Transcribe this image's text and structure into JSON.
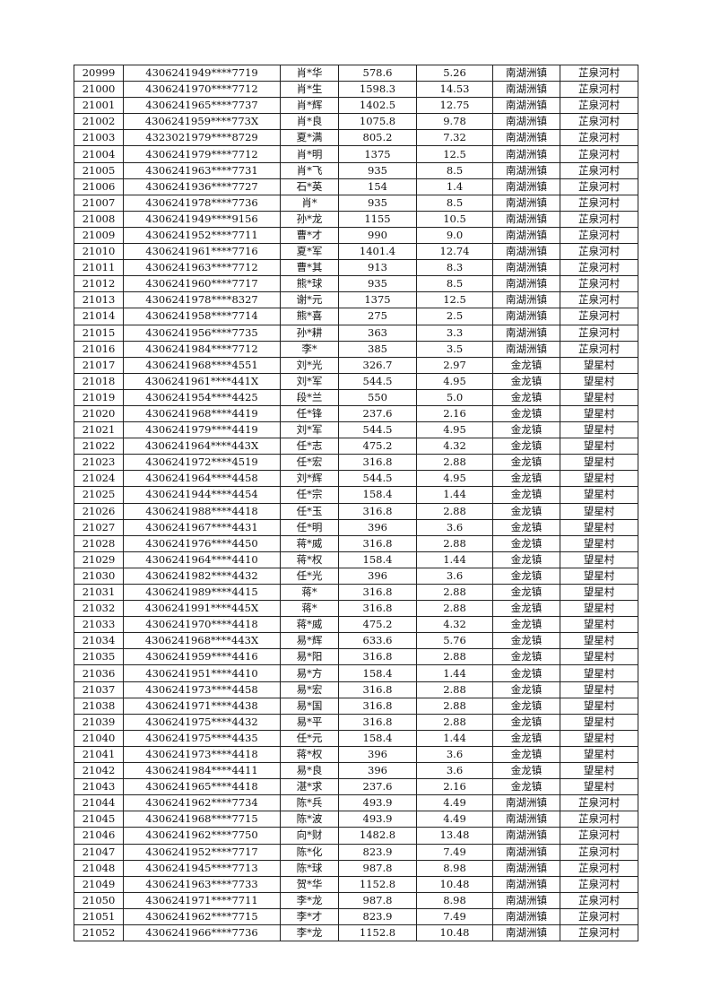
{
  "rows": [
    [
      "20999",
      "4306241949****7719",
      "肖*华",
      "578.6",
      "5.26",
      "南湖洲镇",
      "芷泉河村"
    ],
    [
      "21000",
      "4306241970****7712",
      "肖*生",
      "1598.3",
      "14.53",
      "南湖洲镇",
      "芷泉河村"
    ],
    [
      "21001",
      "4306241965****7737",
      "肖*辉",
      "1402.5",
      "12.75",
      "南湖洲镇",
      "芷泉河村"
    ],
    [
      "21002",
      "4306241959****773X",
      "肖*良",
      "1075.8",
      "9.78",
      "南湖洲镇",
      "芷泉河村"
    ],
    [
      "21003",
      "4323021979****8729",
      "夏*满",
      "805.2",
      "7.32",
      "南湖洲镇",
      "芷泉河村"
    ],
    [
      "21004",
      "4306241979****7712",
      "肖*明",
      "1375",
      "12.5",
      "南湖洲镇",
      "芷泉河村"
    ],
    [
      "21005",
      "4306241963****7731",
      "肖*飞",
      "935",
      "8.5",
      "南湖洲镇",
      "芷泉河村"
    ],
    [
      "21006",
      "4306241936****7727",
      "石*英",
      "154",
      "1.4",
      "南湖洲镇",
      "芷泉河村"
    ],
    [
      "21007",
      "4306241978****7736",
      "肖*",
      "935",
      "8.5",
      "南湖洲镇",
      "芷泉河村"
    ],
    [
      "21008",
      "4306241949****9156",
      "孙*龙",
      "1155",
      "10.5",
      "南湖洲镇",
      "芷泉河村"
    ],
    [
      "21009",
      "4306241952****7711",
      "曹*才",
      "990",
      "9.0",
      "南湖洲镇",
      "芷泉河村"
    ],
    [
      "21010",
      "4306241961****7716",
      "夏*军",
      "1401.4",
      "12.74",
      "南湖洲镇",
      "芷泉河村"
    ],
    [
      "21011",
      "4306241963****7712",
      "曹*其",
      "913",
      "8.3",
      "南湖洲镇",
      "芷泉河村"
    ],
    [
      "21012",
      "4306241960****7717",
      "熊*球",
      "935",
      "8.5",
      "南湖洲镇",
      "芷泉河村"
    ],
    [
      "21013",
      "4306241978****8327",
      "谢*元",
      "1375",
      "12.5",
      "南湖洲镇",
      "芷泉河村"
    ],
    [
      "21014",
      "4306241958****7714",
      "熊*喜",
      "275",
      "2.5",
      "南湖洲镇",
      "芷泉河村"
    ],
    [
      "21015",
      "4306241956****7735",
      "孙*耕",
      "363",
      "3.3",
      "南湖洲镇",
      "芷泉河村"
    ],
    [
      "21016",
      "4306241984****7712",
      "李*",
      "385",
      "3.5",
      "南湖洲镇",
      "芷泉河村"
    ],
    [
      "21017",
      "4306241968****4551",
      "刘*光",
      "326.7",
      "2.97",
      "金龙镇",
      "望星村"
    ],
    [
      "21018",
      "4306241961****441X",
      "刘*军",
      "544.5",
      "4.95",
      "金龙镇",
      "望星村"
    ],
    [
      "21019",
      "4306241954****4425",
      "段*兰",
      "550",
      "5.0",
      "金龙镇",
      "望星村"
    ],
    [
      "21020",
      "4306241968****4419",
      "任*锋",
      "237.6",
      "2.16",
      "金龙镇",
      "望星村"
    ],
    [
      "21021",
      "4306241979****4419",
      "刘*军",
      "544.5",
      "4.95",
      "金龙镇",
      "望星村"
    ],
    [
      "21022",
      "4306241964****443X",
      "任*志",
      "475.2",
      "4.32",
      "金龙镇",
      "望星村"
    ],
    [
      "21023",
      "4306241972****4519",
      "任*宏",
      "316.8",
      "2.88",
      "金龙镇",
      "望星村"
    ],
    [
      "21024",
      "4306241964****4458",
      "刘*辉",
      "544.5",
      "4.95",
      "金龙镇",
      "望星村"
    ],
    [
      "21025",
      "4306241944****4454",
      "任*宗",
      "158.4",
      "1.44",
      "金龙镇",
      "望星村"
    ],
    [
      "21026",
      "4306241988****4418",
      "任*玉",
      "316.8",
      "2.88",
      "金龙镇",
      "望星村"
    ],
    [
      "21027",
      "4306241967****4431",
      "任*明",
      "396",
      "3.6",
      "金龙镇",
      "望星村"
    ],
    [
      "21028",
      "4306241976****4450",
      "蒋*威",
      "316.8",
      "2.88",
      "金龙镇",
      "望星村"
    ],
    [
      "21029",
      "4306241964****4410",
      "蒋*权",
      "158.4",
      "1.44",
      "金龙镇",
      "望星村"
    ],
    [
      "21030",
      "4306241982****4432",
      "任*光",
      "396",
      "3.6",
      "金龙镇",
      "望星村"
    ],
    [
      "21031",
      "4306241989****4415",
      "蒋*",
      "316.8",
      "2.88",
      "金龙镇",
      "望星村"
    ],
    [
      "21032",
      "4306241991****445X",
      "蒋*",
      "316.8",
      "2.88",
      "金龙镇",
      "望星村"
    ],
    [
      "21033",
      "4306241970****4418",
      "蒋*威",
      "475.2",
      "4.32",
      "金龙镇",
      "望星村"
    ],
    [
      "21034",
      "4306241968****443X",
      "易*辉",
      "633.6",
      "5.76",
      "金龙镇",
      "望星村"
    ],
    [
      "21035",
      "4306241959****4416",
      "易*阳",
      "316.8",
      "2.88",
      "金龙镇",
      "望星村"
    ],
    [
      "21036",
      "4306241951****4410",
      "易*方",
      "158.4",
      "1.44",
      "金龙镇",
      "望星村"
    ],
    [
      "21037",
      "4306241973****4458",
      "易*宏",
      "316.8",
      "2.88",
      "金龙镇",
      "望星村"
    ],
    [
      "21038",
      "4306241971****4438",
      "易*国",
      "316.8",
      "2.88",
      "金龙镇",
      "望星村"
    ],
    [
      "21039",
      "4306241975****4432",
      "易*平",
      "316.8",
      "2.88",
      "金龙镇",
      "望星村"
    ],
    [
      "21040",
      "4306241975****4435",
      "任*元",
      "158.4",
      "1.44",
      "金龙镇",
      "望星村"
    ],
    [
      "21041",
      "4306241973****4418",
      "蒋*权",
      "396",
      "3.6",
      "金龙镇",
      "望星村"
    ],
    [
      "21042",
      "4306241984****4411",
      "易*良",
      "396",
      "3.6",
      "金龙镇",
      "望星村"
    ],
    [
      "21043",
      "4306241965****4418",
      "湛*求",
      "237.6",
      "2.16",
      "金龙镇",
      "望星村"
    ],
    [
      "21044",
      "4306241962****7734",
      "陈*兵",
      "493.9",
      "4.49",
      "南湖洲镇",
      "芷泉河村"
    ],
    [
      "21045",
      "4306241968****7715",
      "陈*波",
      "493.9",
      "4.49",
      "南湖洲镇",
      "芷泉河村"
    ],
    [
      "21046",
      "4306241962****7750",
      "向*财",
      "1482.8",
      "13.48",
      "南湖洲镇",
      "芷泉河村"
    ],
    [
      "21047",
      "4306241952****7717",
      "陈*化",
      "823.9",
      "7.49",
      "南湖洲镇",
      "芷泉河村"
    ],
    [
      "21048",
      "4306241945****7713",
      "陈*球",
      "987.8",
      "8.98",
      "南湖洲镇",
      "芷泉河村"
    ],
    [
      "21049",
      "4306241963****7733",
      "贺*华",
      "1152.8",
      "10.48",
      "南湖洲镇",
      "芷泉河村"
    ],
    [
      "21050",
      "4306241971****7711",
      "李*龙",
      "987.8",
      "8.98",
      "南湖洲镇",
      "芷泉河村"
    ],
    [
      "21051",
      "4306241962****7715",
      "李*才",
      "823.9",
      "7.49",
      "南湖洲镇",
      "芷泉河村"
    ],
    [
      "21052",
      "4306241966****7736",
      "李*龙",
      "1152.8",
      "10.48",
      "南湖洲镇",
      "芷泉河村"
    ]
  ]
}
